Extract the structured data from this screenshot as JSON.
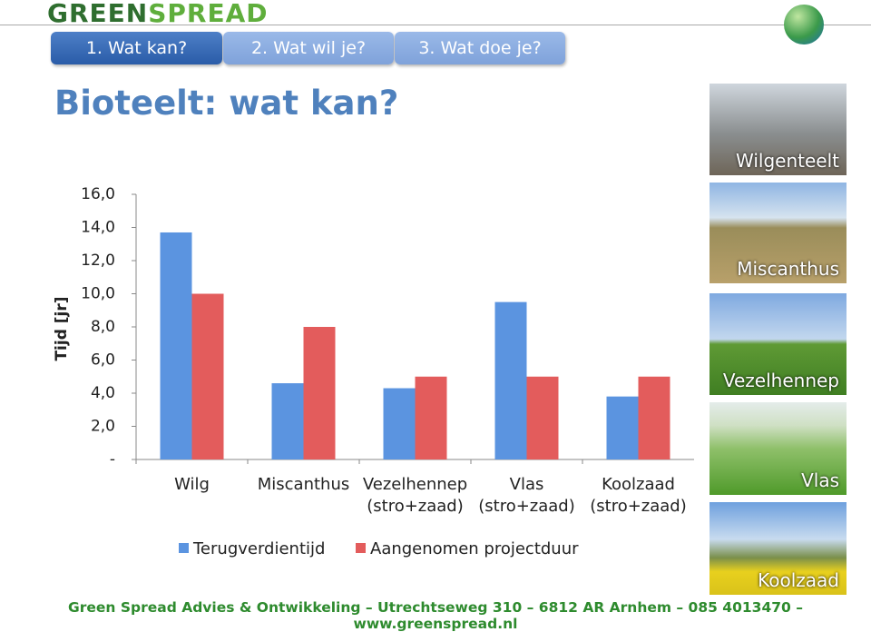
{
  "header": {
    "logo": [
      "GREEN",
      "SPREAD"
    ]
  },
  "tabs": [
    "1. Wat kan?",
    "2. Wat wil je?",
    "3. Wat doe je?"
  ],
  "title": "Bioteelt: wat kan?",
  "images": [
    "Wilgenteelt",
    "Miscanthus",
    "Vezelhennep",
    "Vlas",
    "Koolzaad"
  ],
  "footer": "Green Spread Advies & Ontwikkeling – Utrechtseweg 310 – 6812 AR Arnhem – 085 4013470 – www.greenspread.nl",
  "chart_data": {
    "type": "bar",
    "y_label": "Tijd [jr]",
    "categories": [
      "Wilg",
      "Miscanthus",
      "Vezelhennep (stro+zaad)",
      "Vlas (stro+zaad)",
      "Koolzaad (stro+zaad)"
    ],
    "series": [
      {
        "name": "Terugverdientijd",
        "color": "#5b94e0",
        "values": [
          13.7,
          4.6,
          4.3,
          9.5,
          3.8
        ]
      },
      {
        "name": "Aangenomen projectduur",
        "color": "#e35c5c",
        "values": [
          10.0,
          8.0,
          5.0,
          5.0,
          5.0
        ]
      }
    ],
    "ylim": [
      0,
      16
    ],
    "yticks": [
      {
        "value": 0,
        "label": "-"
      },
      {
        "value": 2,
        "label": "2,0"
      },
      {
        "value": 4,
        "label": "4,0"
      },
      {
        "value": 6,
        "label": "6,0"
      },
      {
        "value": 8,
        "label": "8,0"
      },
      {
        "value": 10,
        "label": "10,0"
      },
      {
        "value": 12,
        "label": "12,0"
      },
      {
        "value": 14,
        "label": "14,0"
      },
      {
        "value": 16,
        "label": "16,0"
      }
    ],
    "legend": "bottom",
    "grid": false
  }
}
